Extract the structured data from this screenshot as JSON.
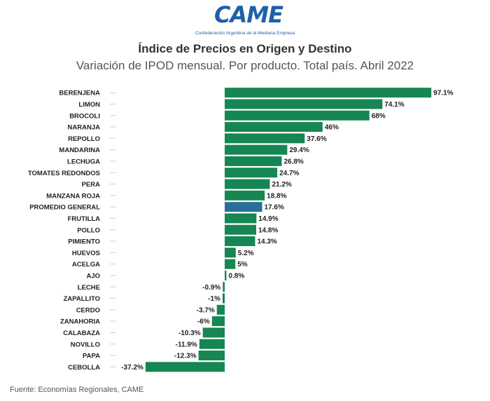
{
  "header": {
    "logo_text": "CAME",
    "logo_subtitle": "Confederación Argentina de la Mediana Empresa",
    "title": "Índice de Precios en Origen y Destino",
    "subtitle": "Variación de IPOD mensual. Por producto. Total país. Abril 2022"
  },
  "footer": {
    "source": "Fuente: Economías Regionales, CAME"
  },
  "colors": {
    "bar": "#168652",
    "highlight": "#2a6f97",
    "label": "#222222",
    "tick": "#cccccc"
  },
  "chart_data": {
    "type": "bar",
    "orientation": "horizontal",
    "categories": [
      "BERENJENA",
      "LIMON",
      "BROCOLI",
      "NARANJA",
      "REPOLLO",
      "MANDARINA",
      "LECHUGA",
      "TOMATES REDONDOS",
      "PERA",
      "MANZANA ROJA",
      "PROMEDIO GENERAL",
      "FRUTILLA",
      "POLLO",
      "PIMIENTO",
      "HUEVOS",
      "ACELGA",
      "AJO",
      "LECHE",
      "ZAPALLITO",
      "CERDO",
      "ZANAHORIA",
      "CALABAZA",
      "NOVILLO",
      "PAPA",
      "CEBOLLA"
    ],
    "values": [
      97.1,
      74.1,
      68,
      46,
      37.6,
      29.4,
      26.8,
      24.7,
      21.2,
      18.8,
      17.6,
      14.9,
      14.8,
      14.3,
      5.2,
      5,
      0.8,
      -0.9,
      -1,
      -3.7,
      -6,
      -10.3,
      -11.9,
      -12.3,
      -37.2
    ],
    "value_labels": [
      "97.1%",
      "74.1%",
      "68%",
      "46%",
      "37.6%",
      "29.4%",
      "26.8%",
      "24.7%",
      "21.2%",
      "18.8%",
      "17.6%",
      "14.9%",
      "14.8%",
      "14.3%",
      "5.2%",
      "5%",
      "0.8%",
      "-0.9%",
      "-1%",
      "-3.7%",
      "-6%",
      "-10.3%",
      "-11.9%",
      "-12.3%",
      "-37.2%"
    ],
    "highlight_category": "PROMEDIO GENERAL"
  }
}
